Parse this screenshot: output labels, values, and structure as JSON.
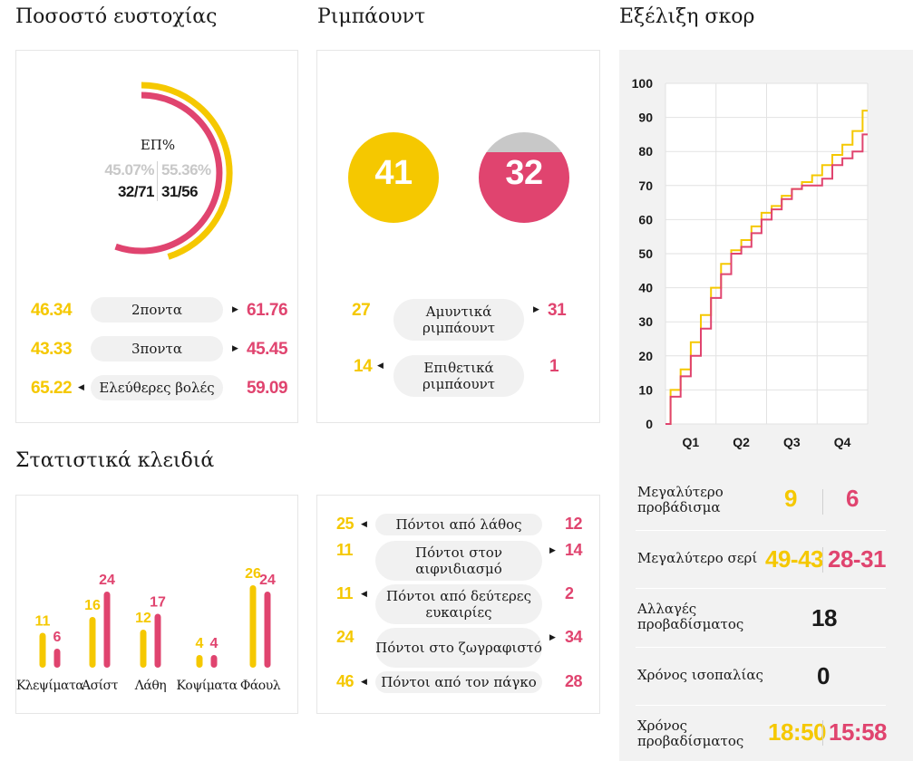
{
  "titles": {
    "shooting": "Ποσοστό ευστοχίας",
    "rebounds": "Ριμπάουντ",
    "score_evolution": "Εξέλιξη σκορ",
    "key_stats": "Στατιστικά κλειδιά"
  },
  "colors": {
    "team_a": "#f5c800",
    "team_b": "#e0446f",
    "neutral": "#c8c8c8"
  },
  "shooting": {
    "label": "ΕΠ%",
    "team_a_pct": "45.07%",
    "team_b_pct": "55.36%",
    "team_a_made": "32/71",
    "team_b_made": "31/56",
    "team_a_fraction": 0.4507,
    "team_b_fraction": 0.5536,
    "rows": [
      {
        "a": "46.34",
        "label": "2ποντα",
        "b": "61.76",
        "arrow": "right"
      },
      {
        "a": "43.33",
        "label": "3ποντα",
        "b": "45.45",
        "arrow": "right"
      },
      {
        "a": "65.22",
        "label": "Ελεύθερες βολές",
        "b": "59.09",
        "arrow": "left"
      }
    ]
  },
  "rebounds": {
    "team_a_total": "41",
    "team_b_total": "32",
    "team_b_fill_fraction": 0.78,
    "rows": [
      {
        "a": "27",
        "label": "Αμυντικά ριμπάουντ",
        "b": "31",
        "arrow": "right"
      },
      {
        "a": "14",
        "label": "Επιθετικά ριμπάουντ",
        "b": "1",
        "arrow": "left"
      }
    ]
  },
  "key_stats_bars": {
    "categories": [
      "Κλεψίματα",
      "Ασίστ",
      "Λάθη",
      "Κοψίματα",
      "Φάουλ"
    ],
    "team_a": [
      11,
      16,
      12,
      4,
      26
    ],
    "team_b": [
      6,
      24,
      17,
      4,
      24
    ]
  },
  "key_stats_points": [
    {
      "a": "25",
      "label": "Πόντοι από λάθος",
      "b": "12",
      "arrow": "left"
    },
    {
      "a": "11",
      "label": "Πόντοι στον αιφνιδιασμό",
      "b": "14",
      "arrow": "right"
    },
    {
      "a": "11",
      "label": "Πόντοι από δεύτερες ευκαιρίες",
      "b": "2",
      "arrow": "left"
    },
    {
      "a": "24",
      "label": "Πόντοι στο ζωγραφιστό",
      "b": "34",
      "arrow": "right"
    },
    {
      "a": "46",
      "label": "Πόντοι από τον πάγκο",
      "b": "28",
      "arrow": "left"
    }
  ],
  "chart_data": {
    "type": "line",
    "title": "Εξέλιξη σκορ",
    "xlabel": "",
    "ylabel": "",
    "categories": [
      "Q1",
      "Q2",
      "Q3",
      "Q4"
    ],
    "ylim": [
      0,
      100
    ],
    "yticks": [
      "0",
      "10",
      "20",
      "30",
      "40",
      "50",
      "60",
      "70",
      "80",
      "90",
      "100"
    ],
    "grid": true,
    "series": [
      {
        "color": "#f5c800",
        "x": [
          0,
          2,
          4,
          6,
          8,
          10,
          12,
          14,
          16,
          18,
          20,
          22,
          24,
          26,
          28,
          30,
          32,
          34,
          36,
          38,
          40
        ],
        "y": [
          0,
          10,
          16,
          24,
          32,
          40,
          47,
          51,
          54,
          58,
          62,
          64,
          67,
          69,
          71,
          73,
          76,
          79,
          82,
          86,
          92
        ]
      },
      {
        "color": "#e0446f",
        "x": [
          0,
          2,
          4,
          6,
          8,
          10,
          12,
          14,
          16,
          18,
          20,
          22,
          24,
          26,
          28,
          30,
          32,
          34,
          36,
          38,
          40
        ],
        "y": [
          0,
          8,
          14,
          20,
          28,
          37,
          44,
          50,
          52,
          56,
          60,
          63,
          66,
          69,
          70,
          70,
          72,
          76,
          78,
          80,
          85
        ]
      }
    ]
  },
  "score_panel": {
    "biggest_lead": {
      "label": "Μεγαλύτερο προβάδισμα",
      "a": "9",
      "b": "6"
    },
    "biggest_run": {
      "label": "Μεγαλύτερο σερί",
      "a": "49-43",
      "b": "28-31"
    },
    "lead_changes": {
      "label": "Αλλαγές προβαδίσματος",
      "value": "18"
    },
    "tie_time": {
      "label": "Χρόνος ισοπαλίας",
      "value": "0"
    },
    "lead_time": {
      "label": "Χρόνος προβαδίσματος",
      "a": "18:50",
      "b": "15:58"
    }
  }
}
